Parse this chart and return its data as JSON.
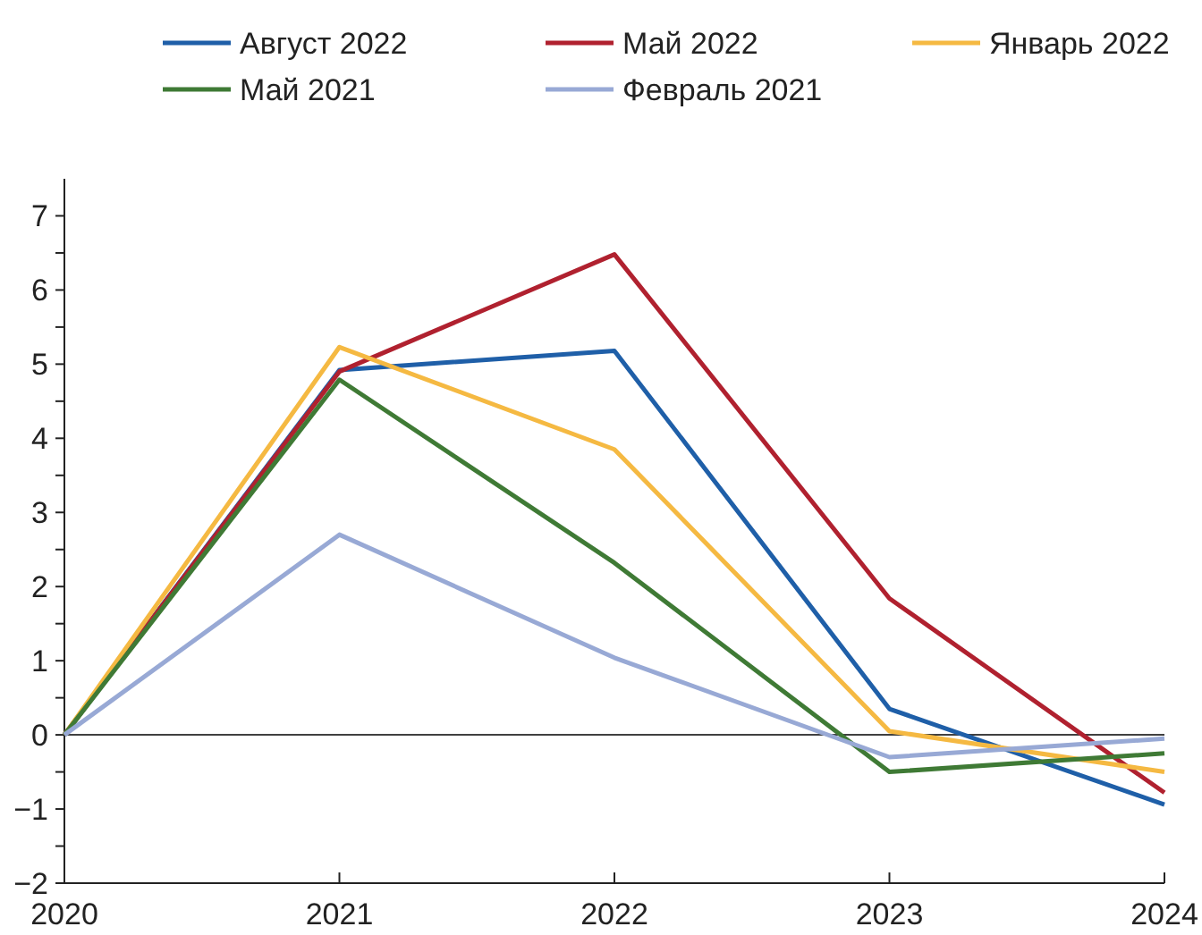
{
  "chart_data": {
    "type": "line",
    "categories": [
      "2020",
      "2021",
      "2022",
      "2023",
      "2024"
    ],
    "series": [
      {
        "name": "Август 2022",
        "color": "#1f5fa8",
        "values": [
          0,
          4.92,
          5.18,
          0.35,
          -0.94
        ]
      },
      {
        "name": "Май 2022",
        "color": "#b0212f",
        "values": [
          0,
          4.9,
          6.48,
          1.84,
          -0.78
        ]
      },
      {
        "name": "Январь 2022",
        "color": "#f5b942",
        "values": [
          0,
          5.23,
          3.85,
          0.05,
          -0.5
        ]
      },
      {
        "name": "Май 2021",
        "color": "#3f7a35",
        "values": [
          0,
          4.79,
          2.32,
          -0.5,
          -0.25
        ]
      },
      {
        "name": "Февраль 2021",
        "color": "#98a9d5",
        "values": [
          0,
          2.7,
          1.04,
          -0.3,
          -0.05
        ]
      }
    ],
    "ylim": [
      -2,
      7.5
    ],
    "yticks": [
      {
        "value": -2,
        "label": "−2"
      },
      {
        "value": -1.5,
        "label": null
      },
      {
        "value": -1,
        "label": "−1"
      },
      {
        "value": -0.5,
        "label": null
      },
      0,
      {
        "value": 0.5,
        "label": null
      },
      1,
      {
        "value": 1.5,
        "label": null
      },
      2,
      {
        "value": 2.5,
        "label": null
      },
      3,
      {
        "value": 3.5,
        "label": null
      },
      4,
      {
        "value": 4.5,
        "label": null
      },
      5,
      {
        "value": 5.5,
        "label": null
      },
      6,
      {
        "value": 6.5,
        "label": null
      },
      7
    ],
    "ref_lines": [
      {
        "axis": "y",
        "value": 0,
        "color": "#404040"
      }
    ],
    "legend": "top",
    "grid": false,
    "marker": "none",
    "line_style": "solid"
  }
}
